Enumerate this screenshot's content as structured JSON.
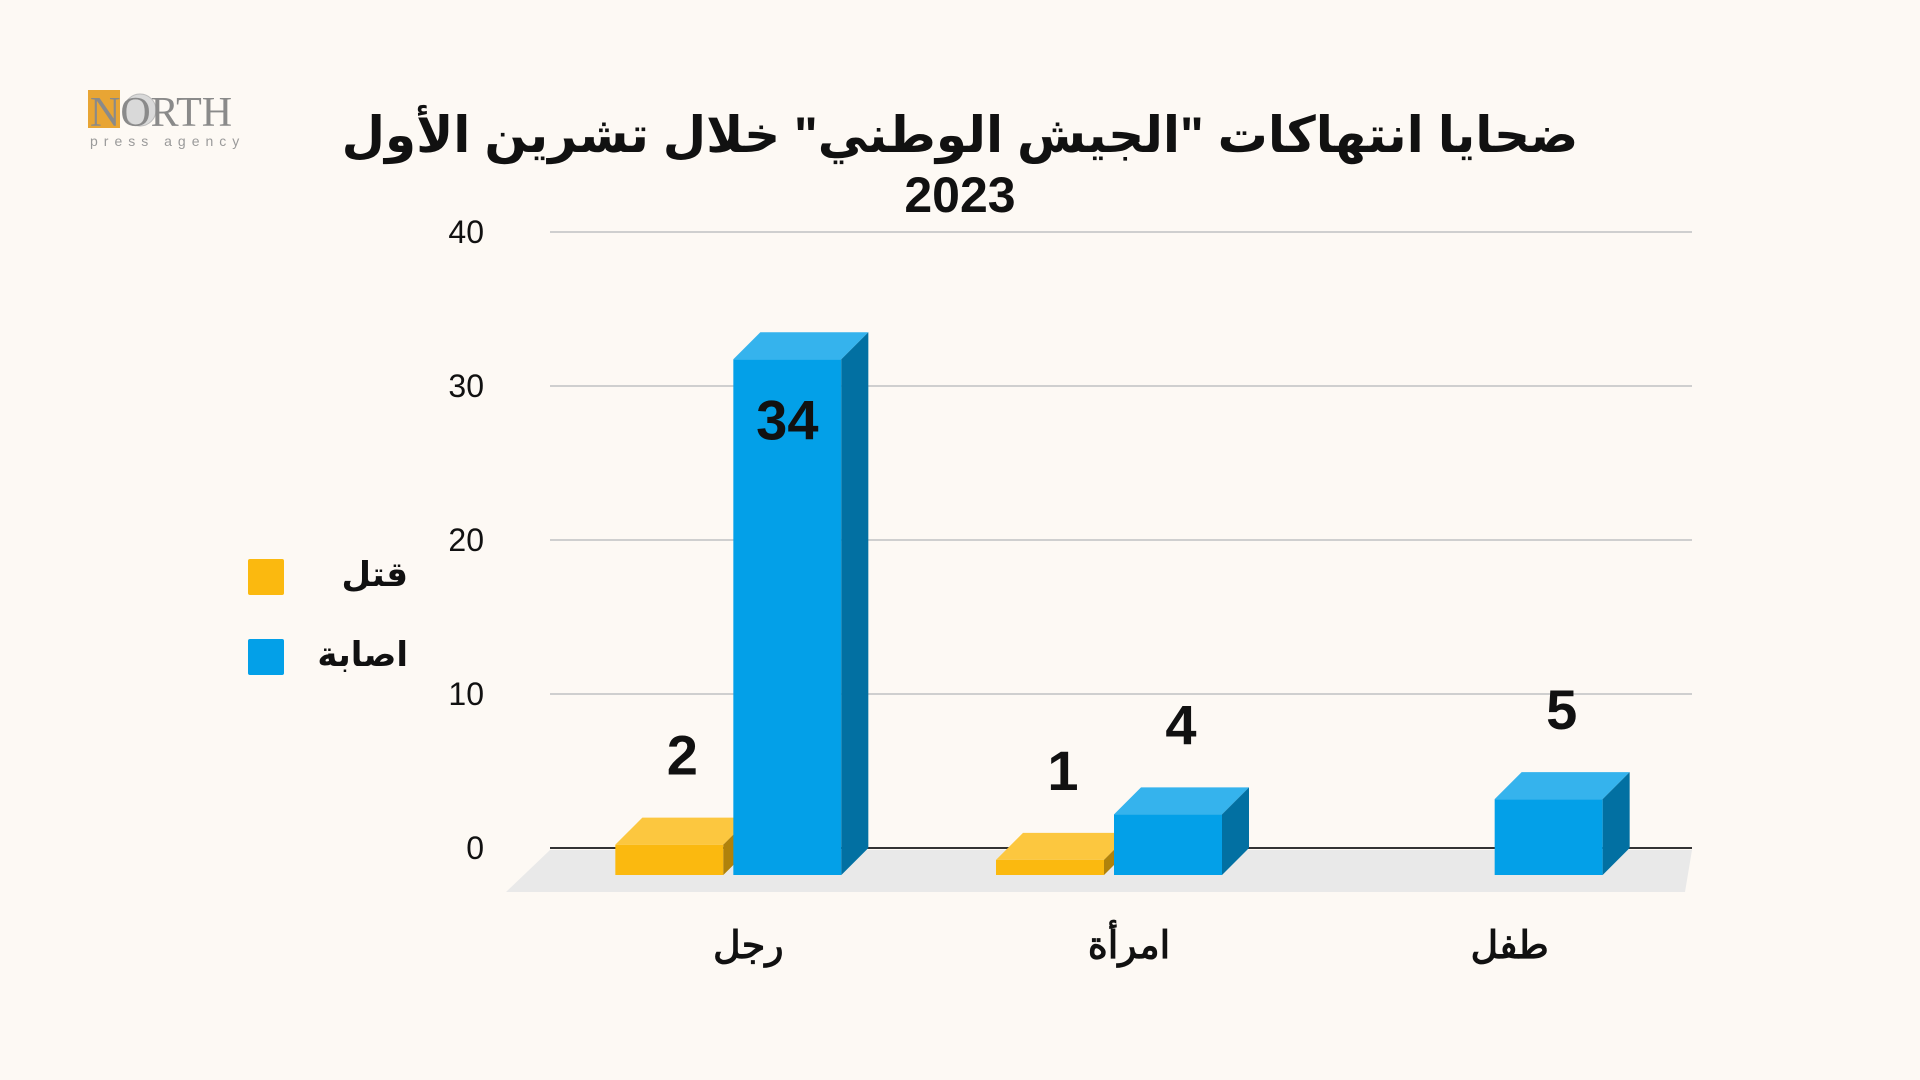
{
  "logo": {
    "main_text": "NORTH",
    "sub_text": "press agency"
  },
  "colors": {
    "background": "#fdf9f4",
    "killed": "#fbb90f",
    "injured": "#03a0e8",
    "gridline": "#cfcfcf",
    "floor": "#e9e9e9",
    "text": "#111111"
  },
  "chart_data": {
    "type": "bar",
    "title": "ضحايا انتهاكات \"الجيش الوطني\" خلال تشرين الأول 2023",
    "categories": [
      "رجل",
      "امرأة",
      "طفل"
    ],
    "series": [
      {
        "name": "قتل",
        "color": "#fbb90f",
        "values": [
          2,
          1,
          null
        ]
      },
      {
        "name": "اصابة",
        "color": "#03a0e8",
        "values": [
          34,
          4,
          5
        ]
      }
    ],
    "y_ticks": [
      "0",
      "10",
      "20",
      "30",
      "40"
    ],
    "ylim": [
      0,
      40
    ],
    "grid": true,
    "legend_position": "left",
    "three_d": true
  }
}
